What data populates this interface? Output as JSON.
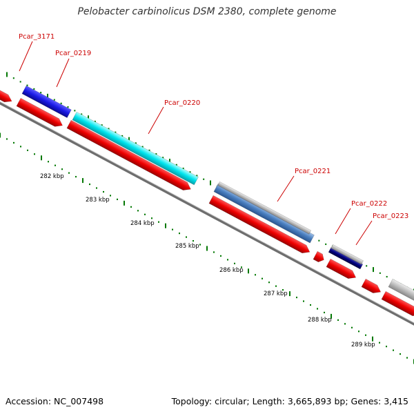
{
  "title": "Pelobacter carbinolicus DSM 2380, complete genome",
  "footer": {
    "accession": "Accession: NC_007498",
    "topology": "Topology: circular; Length: 3,665,893 bp; Genes: 3,415"
  },
  "colors": {
    "forward_cds": "#ee0000",
    "blue_feature": "#1a1ae6",
    "cyan_feature": "#00e5ee",
    "steelblue_feature": "#4a7fc0",
    "navy_feature": "#000080",
    "grey_feature": "#b8b8b8",
    "backbone": "#888888",
    "ticks": "#007700",
    "labels": "#cc0000"
  },
  "gene_labels": [
    "Pcar_3171",
    "Pcar_0219",
    "Pcar_0220",
    "Pcar_0221",
    "Pcar_0222",
    "Pcar_0223"
  ],
  "kbp_labels": [
    "282 kbp",
    "283 kbp",
    "284 kbp",
    "285 kbp",
    "286 kbp",
    "287 kbp",
    "288 kbp",
    "289 kbp"
  ]
}
